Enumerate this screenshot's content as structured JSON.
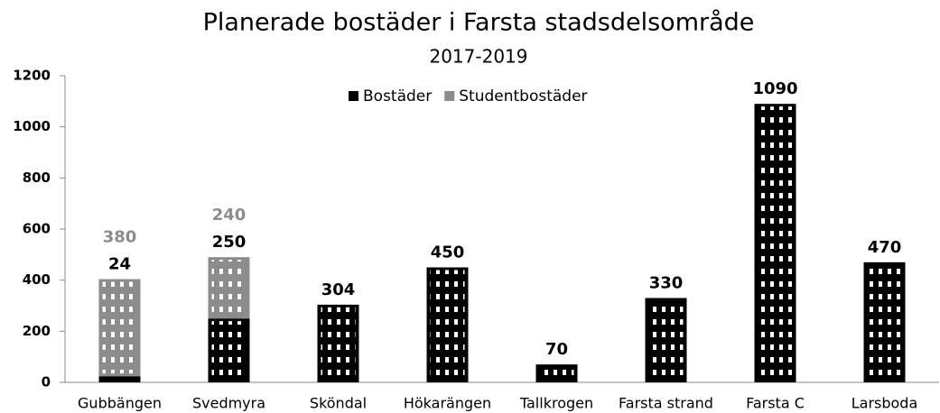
{
  "chart_data": {
    "type": "bar",
    "stacked": true,
    "title": "Planerade bostäder i Farsta stadsdelsområde",
    "subtitle": "2017-2019",
    "categories": [
      "Gubbängen",
      "Svedmyra",
      "Sköndal",
      "Hökarängen",
      "Tallkrogen",
      "Farsta strand",
      "Farsta C",
      "Larsboda"
    ],
    "series": [
      {
        "name": "Bostäder",
        "color": "#000000",
        "values": [
          24,
          250,
          304,
          450,
          70,
          330,
          1090,
          470
        ]
      },
      {
        "name": "Studentbostäder",
        "color": "#8c8c8c",
        "values": [
          380,
          240,
          null,
          null,
          null,
          null,
          null,
          null
        ]
      }
    ],
    "ylim": [
      0,
      1200
    ],
    "yticks": [
      0,
      200,
      400,
      600,
      800,
      1000,
      1200
    ],
    "grid": false,
    "legend": "top"
  }
}
